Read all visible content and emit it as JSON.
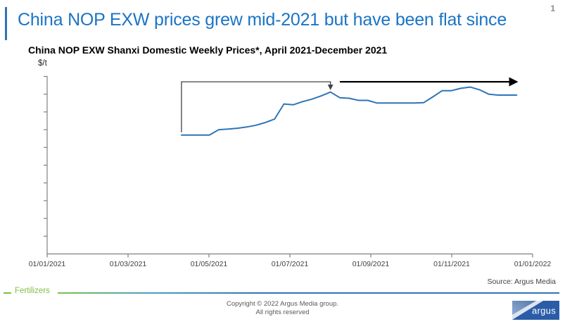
{
  "slide": {
    "title": "China NOP EXW prices grew mid-2021 but have been flat since",
    "page_number": "1"
  },
  "colors": {
    "title_blue": "#1B74C4",
    "series_blue": "#2E75B6",
    "axis_gray": "#808080",
    "footer_green": "#7DC142",
    "footer_blue": "#2E75B6"
  },
  "chart_data": {
    "type": "line",
    "title": "China NOP EXW Shanxi Domestic Weekly Prices*, April 2021-December 2021",
    "ylabel": "$/t",
    "xlabel": "",
    "grid": false,
    "legend": "none",
    "x_range": [
      "01/01/2021",
      "01/01/2022"
    ],
    "x_tick_labels": [
      "01/01/2021",
      "01/03/2021",
      "01/05/2021",
      "01/07/2021",
      "01/09/2021",
      "01/11/2021",
      "01/01/2022"
    ],
    "y_axis": {
      "ylim": [
        0,
        10
      ],
      "tick_count": 10,
      "tick_labels_hidden": true,
      "note": "y-axis shows tick marks only, no printed values; series values below are in relative axis-tick units"
    },
    "series": [
      {
        "name": "China NOP EXW Shanxi domestic weekly price",
        "color": "#2E75B6",
        "points": [
          [
            "04/12/2021",
            6.7
          ],
          [
            "04/19/2021",
            6.7
          ],
          [
            "04/26/2021",
            6.7
          ],
          [
            "05/03/2021",
            6.7
          ],
          [
            "05/10/2021",
            7.0
          ],
          [
            "05/17/2021",
            7.03
          ],
          [
            "05/24/2021",
            7.08
          ],
          [
            "05/31/2021",
            7.15
          ],
          [
            "06/07/2021",
            7.25
          ],
          [
            "06/14/2021",
            7.4
          ],
          [
            "06/21/2021",
            7.6
          ],
          [
            "06/28/2021",
            8.45
          ],
          [
            "07/05/2021",
            8.4
          ],
          [
            "07/12/2021",
            8.58
          ],
          [
            "07/19/2021",
            8.72
          ],
          [
            "07/26/2021",
            8.9
          ],
          [
            "08/02/2021",
            9.12
          ],
          [
            "08/09/2021",
            8.8
          ],
          [
            "08/16/2021",
            8.77
          ],
          [
            "08/23/2021",
            8.65
          ],
          [
            "08/30/2021",
            8.65
          ],
          [
            "09/06/2021",
            8.5
          ],
          [
            "09/13/2021",
            8.5
          ],
          [
            "09/20/2021",
            8.5
          ],
          [
            "09/27/2021",
            8.5
          ],
          [
            "10/04/2021",
            8.5
          ],
          [
            "10/11/2021",
            8.52
          ],
          [
            "10/18/2021",
            8.85
          ],
          [
            "10/25/2021",
            9.2
          ],
          [
            "11/01/2021",
            9.2
          ],
          [
            "11/08/2021",
            9.33
          ],
          [
            "11/15/2021",
            9.4
          ],
          [
            "11/22/2021",
            9.25
          ],
          [
            "11/29/2021",
            9.0
          ],
          [
            "12/06/2021",
            8.95
          ],
          [
            "12/13/2021",
            8.95
          ],
          [
            "12/20/2021",
            8.95
          ]
        ]
      }
    ],
    "annotations": [
      {
        "name": "rise-bracket-arrow",
        "type": "bracket-arrow",
        "color": "#404040",
        "stroke_width": 1.3,
        "arrowhead": "end",
        "points": [
          [
            "04/12/2021",
            6.85
          ],
          [
            "04/12/2021",
            9.7
          ],
          [
            "08/02/2021",
            9.7
          ],
          [
            "08/02/2021",
            9.28
          ]
        ]
      },
      {
        "name": "flat-period-arrow",
        "type": "arrow",
        "color": "#000000",
        "stroke_width": 2.2,
        "arrowhead": "end",
        "points": [
          [
            "08/09/2021",
            9.7
          ],
          [
            "12/20/2021",
            9.7
          ]
        ]
      }
    ],
    "source_note": "Source: Argus Media"
  },
  "footer": {
    "series_label": "Fertilizers",
    "copyright_line1": "Copyright © 2022 Argus Media group.",
    "copyright_line2": "All rights reserved",
    "logo_text": "argus"
  }
}
